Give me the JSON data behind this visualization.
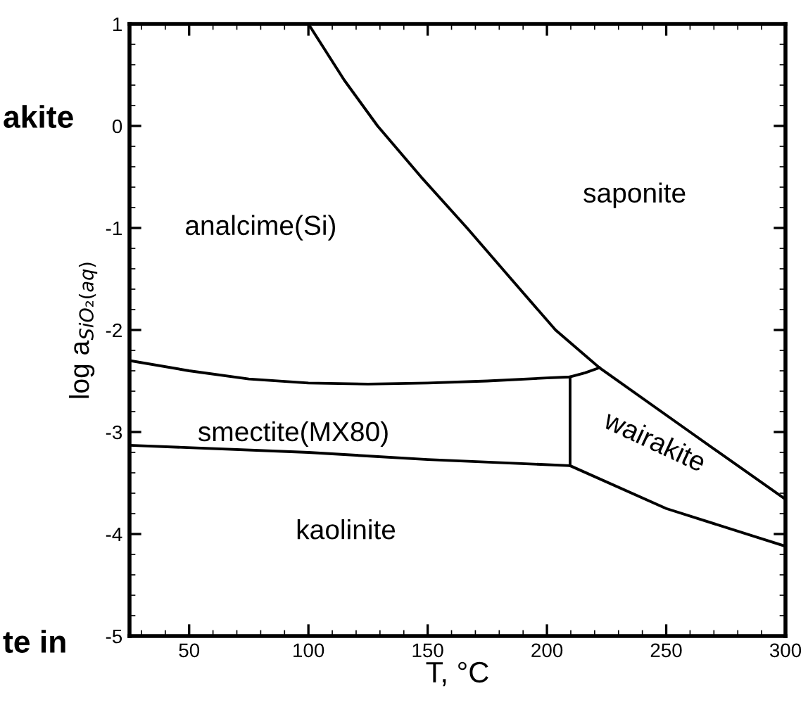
{
  "chart_data": {
    "type": "line",
    "xlabel": "T, °C",
    "ylabel": "log a$_{SiO₂(aq)}$",
    "xlim": [
      25,
      300
    ],
    "xticks": [
      50,
      100,
      150,
      200,
      250,
      300
    ],
    "ylim": [
      -5,
      1
    ],
    "yticks": [
      -5,
      -4,
      -3,
      -2,
      -1,
      0,
      1
    ],
    "grid": false,
    "marker": "none",
    "line_style": "solid",
    "series": [
      {
        "color": "#000000",
        "x": [
          100,
          115,
          129,
          148,
          166.5,
          185,
          203.6,
          222,
          260,
          300
        ],
        "values": [
          1,
          0.45,
          0,
          -0.52,
          -1,
          -1.5,
          -2,
          -2.37,
          -3.0,
          -3.66
        ]
      },
      {
        "color": "#000000",
        "x": [
          25,
          50,
          75,
          100,
          125,
          150,
          175,
          200,
          209.7,
          216,
          222
        ],
        "values": [
          -2.3,
          -2.4,
          -2.48,
          -2.52,
          -2.53,
          -2.52,
          -2.5,
          -2.47,
          -2.46,
          -2.42,
          -2.37
        ]
      },
      {
        "color": "#000000",
        "x": [
          209.7,
          209.7
        ],
        "values": [
          -2.46,
          -3.33
        ]
      },
      {
        "color": "#000000",
        "x": [
          25,
          100,
          150,
          209.7,
          250,
          300
        ],
        "values": [
          -3.13,
          -3.2,
          -3.27,
          -3.33,
          -3.75,
          -4.12
        ]
      }
    ],
    "annotations": [
      "analcime(Si)",
      "saponite",
      "smectite(MX80)",
      "wairakite",
      "kaolinite",
      "akite",
      "te in"
    ]
  }
}
